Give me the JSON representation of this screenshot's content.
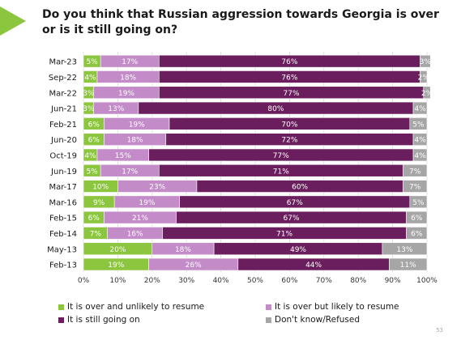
{
  "title": "Do you think that Russian aggression towards Georgia is over or is it still going on?",
  "page_number": "53",
  "colors": {
    "accent": "#8cc63f",
    "series": [
      "#8cc63f",
      "#c48bc9",
      "#6b1e5e",
      "#a6a6a6"
    ]
  },
  "chart_data": {
    "type": "bar",
    "orientation": "horizontal",
    "stacked": "percent",
    "categories": [
      "Mar-23",
      "Sep-22",
      "Mar-22",
      "Jun-21",
      "Feb-21",
      "Jun-20",
      "Oct-19",
      "Jun-19",
      "Mar-17",
      "Mar-16",
      "Feb-15",
      "Feb-14",
      "May-13",
      "Feb-13"
    ],
    "series": [
      {
        "name": "It is over and unlikely to resume",
        "color": "#8cc63f",
        "values": [
          5,
          4,
          3,
          3,
          6,
          6,
          4,
          5,
          10,
          9,
          6,
          7,
          20,
          19
        ]
      },
      {
        "name": "It is over but likely to resume",
        "color": "#c48bc9",
        "values": [
          17,
          18,
          19,
          13,
          19,
          18,
          15,
          17,
          23,
          19,
          21,
          16,
          18,
          26
        ]
      },
      {
        "name": "It is still going on",
        "color": "#6b1e5e",
        "values": [
          76,
          76,
          77,
          80,
          70,
          72,
          77,
          71,
          60,
          67,
          67,
          71,
          49,
          44
        ]
      },
      {
        "name": "Don't know/Refused",
        "color": "#a6a6a6",
        "values": [
          3,
          2,
          2,
          4,
          5,
          4,
          4,
          7,
          7,
          5,
          6,
          6,
          13,
          11
        ]
      }
    ],
    "xlim": [
      0,
      100
    ],
    "x_ticks": [
      "0%",
      "10%",
      "20%",
      "30%",
      "40%",
      "50%",
      "60%",
      "70%",
      "80%",
      "90%",
      "100%"
    ],
    "grid": true,
    "legend_position": "bottom"
  }
}
